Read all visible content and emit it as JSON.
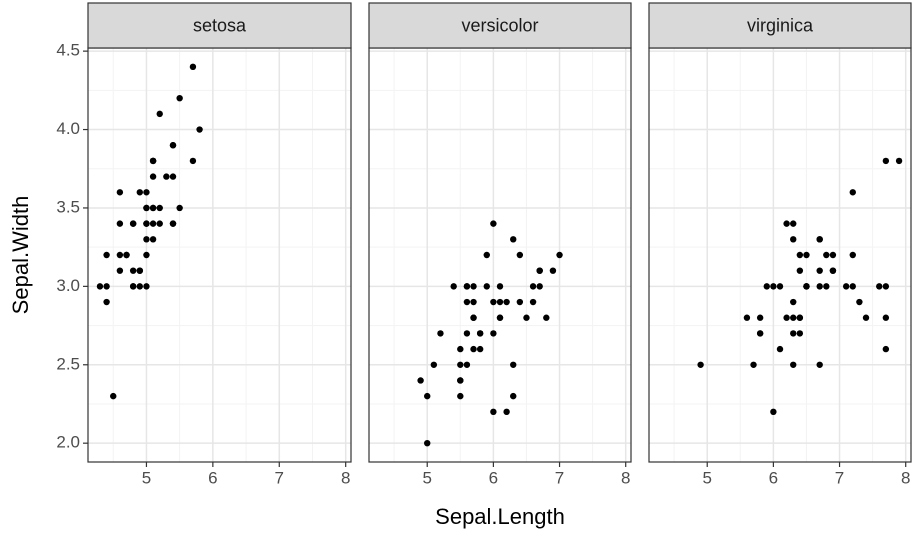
{
  "chart_data": {
    "type": "scatter",
    "x_label": "Sepal.Length",
    "y_label": "Sepal.Width",
    "color": "#000000",
    "grid": true,
    "xlim": [
      4.12,
      8.08
    ],
    "ylim": [
      1.88,
      4.52
    ],
    "xticks": [
      5,
      6,
      7,
      8
    ],
    "yticks": [
      {
        "value": 2,
        "label": "2.0"
      },
      2.5,
      {
        "value": 3,
        "label": "3.0"
      },
      3.5,
      {
        "value": 4,
        "label": "4.0"
      },
      4.5
    ],
    "facets": [
      {
        "title": "setosa",
        "x": [
          5.1,
          4.9,
          4.7,
          4.6,
          5.0,
          5.4,
          4.6,
          5.0,
          4.4,
          4.9,
          5.4,
          4.8,
          4.8,
          4.3,
          5.8,
          5.7,
          5.4,
          5.1,
          5.7,
          5.1,
          5.4,
          5.1,
          4.6,
          5.1,
          4.8,
          5.0,
          5.0,
          5.2,
          5.2,
          4.7,
          4.8,
          5.4,
          5.2,
          5.5,
          4.9,
          5.0,
          5.5,
          4.9,
          4.4,
          5.1,
          5.0,
          4.5,
          4.4,
          5.0,
          5.1,
          4.8,
          5.1,
          4.6,
          5.3,
          5.0
        ],
        "values": [
          3.5,
          3.0,
          3.2,
          3.1,
          3.6,
          3.9,
          3.4,
          3.4,
          2.9,
          3.1,
          3.7,
          3.4,
          3.0,
          3.0,
          4.0,
          4.4,
          3.9,
          3.5,
          3.8,
          3.8,
          3.4,
          3.7,
          3.6,
          3.3,
          3.4,
          3.0,
          3.4,
          3.5,
          3.4,
          3.2,
          3.1,
          3.4,
          4.1,
          4.2,
          3.1,
          3.2,
          3.5,
          3.6,
          3.0,
          3.4,
          3.5,
          2.3,
          3.2,
          3.5,
          3.8,
          3.0,
          3.8,
          3.2,
          3.7,
          3.3
        ]
      },
      {
        "title": "versicolor",
        "x": [
          7.0,
          6.4,
          6.9,
          5.5,
          6.5,
          5.7,
          6.3,
          4.9,
          6.6,
          5.2,
          5.0,
          5.9,
          6.0,
          6.1,
          5.6,
          6.7,
          5.6,
          5.8,
          6.2,
          5.6,
          5.9,
          6.1,
          6.3,
          6.1,
          6.4,
          6.6,
          6.8,
          6.7,
          6.0,
          5.7,
          5.5,
          5.5,
          5.8,
          6.0,
          5.4,
          6.0,
          6.7,
          6.3,
          5.6,
          5.5,
          5.5,
          6.1,
          5.8,
          5.0,
          5.6,
          5.7,
          5.7,
          6.2,
          5.1,
          5.7
        ],
        "values": [
          3.2,
          3.2,
          3.1,
          2.3,
          2.8,
          2.8,
          3.3,
          2.4,
          2.9,
          2.7,
          2.0,
          3.0,
          2.2,
          2.9,
          2.9,
          3.1,
          3.0,
          2.7,
          2.2,
          2.5,
          3.2,
          2.8,
          2.5,
          2.8,
          2.9,
          3.0,
          2.8,
          3.0,
          2.9,
          2.6,
          2.4,
          2.4,
          2.7,
          2.7,
          3.0,
          3.4,
          3.1,
          2.3,
          3.0,
          2.5,
          2.6,
          3.0,
          2.6,
          2.3,
          2.7,
          3.0,
          2.9,
          2.9,
          2.5,
          2.8
        ]
      },
      {
        "title": "virginica",
        "x": [
          6.3,
          5.8,
          7.1,
          6.3,
          6.5,
          7.6,
          4.9,
          7.3,
          6.7,
          7.2,
          6.5,
          6.4,
          6.8,
          5.7,
          5.8,
          6.4,
          6.5,
          7.7,
          7.7,
          6.0,
          6.9,
          5.6,
          7.7,
          6.3,
          6.7,
          7.2,
          6.2,
          6.1,
          6.4,
          7.2,
          7.4,
          7.9,
          6.4,
          6.3,
          6.1,
          7.7,
          6.3,
          6.4,
          6.0,
          6.9,
          6.7,
          6.9,
          5.8,
          6.8,
          6.7,
          6.7,
          6.3,
          6.5,
          6.2,
          5.9
        ],
        "values": [
          3.3,
          2.7,
          3.0,
          2.9,
          3.0,
          3.0,
          2.5,
          2.9,
          2.5,
          3.6,
          3.2,
          2.7,
          3.0,
          2.5,
          2.8,
          3.2,
          3.0,
          3.8,
          2.6,
          2.2,
          3.2,
          2.8,
          2.8,
          2.7,
          3.3,
          3.2,
          2.8,
          3.0,
          2.8,
          3.0,
          2.8,
          3.8,
          2.8,
          2.8,
          2.6,
          3.0,
          3.4,
          3.1,
          3.0,
          3.1,
          3.1,
          3.1,
          2.7,
          3.2,
          3.3,
          3.0,
          2.5,
          3.0,
          3.4,
          3.0
        ]
      }
    ]
  }
}
